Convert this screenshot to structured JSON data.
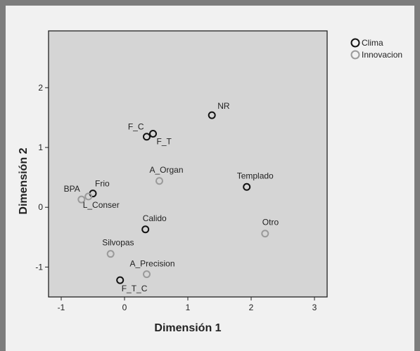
{
  "chart_data": {
    "type": "scatter",
    "xlabel": "Dimensión 1",
    "ylabel": "Dimensión 2",
    "xlim": [
      -1.2,
      3.2
    ],
    "ylim": [
      -1.5,
      2.95
    ],
    "xticks": [
      -1,
      0,
      1,
      2,
      3
    ],
    "yticks": [
      -1,
      0,
      1,
      2
    ],
    "xtick_labels": [
      "-1",
      "0",
      "1",
      "2",
      "3"
    ],
    "ytick_labels": [
      "-1",
      "0",
      "1",
      "2"
    ],
    "legend": {
      "position": "top-right outside"
    },
    "series": [
      {
        "name": "Clima",
        "color": "#111111",
        "points": [
          {
            "label": "NR",
            "x": 1.38,
            "y": 1.54
          },
          {
            "label": "F_C",
            "x": 0.35,
            "y": 1.18
          },
          {
            "label": "F_T",
            "x": 0.45,
            "y": 1.23
          },
          {
            "label": "Templado",
            "x": 1.93,
            "y": 0.34
          },
          {
            "label": "Frio",
            "x": -0.5,
            "y": 0.23
          },
          {
            "label": "Calido",
            "x": 0.33,
            "y": -0.37
          },
          {
            "label": "F_T_C",
            "x": -0.07,
            "y": -1.22
          }
        ]
      },
      {
        "name": "Innovacion",
        "color": "#9a9a9a",
        "points": [
          {
            "label": "A_Organ",
            "x": 0.55,
            "y": 0.44
          },
          {
            "label": "BPA",
            "x": -0.68,
            "y": 0.13
          },
          {
            "label": "L_Conser",
            "x": -0.57,
            "y": 0.18
          },
          {
            "label": "Otro",
            "x": 2.22,
            "y": -0.44
          },
          {
            "label": "Silvopas",
            "x": -0.22,
            "y": -0.78
          },
          {
            "label": "A_Precision",
            "x": 0.35,
            "y": -1.12
          }
        ]
      }
    ]
  }
}
